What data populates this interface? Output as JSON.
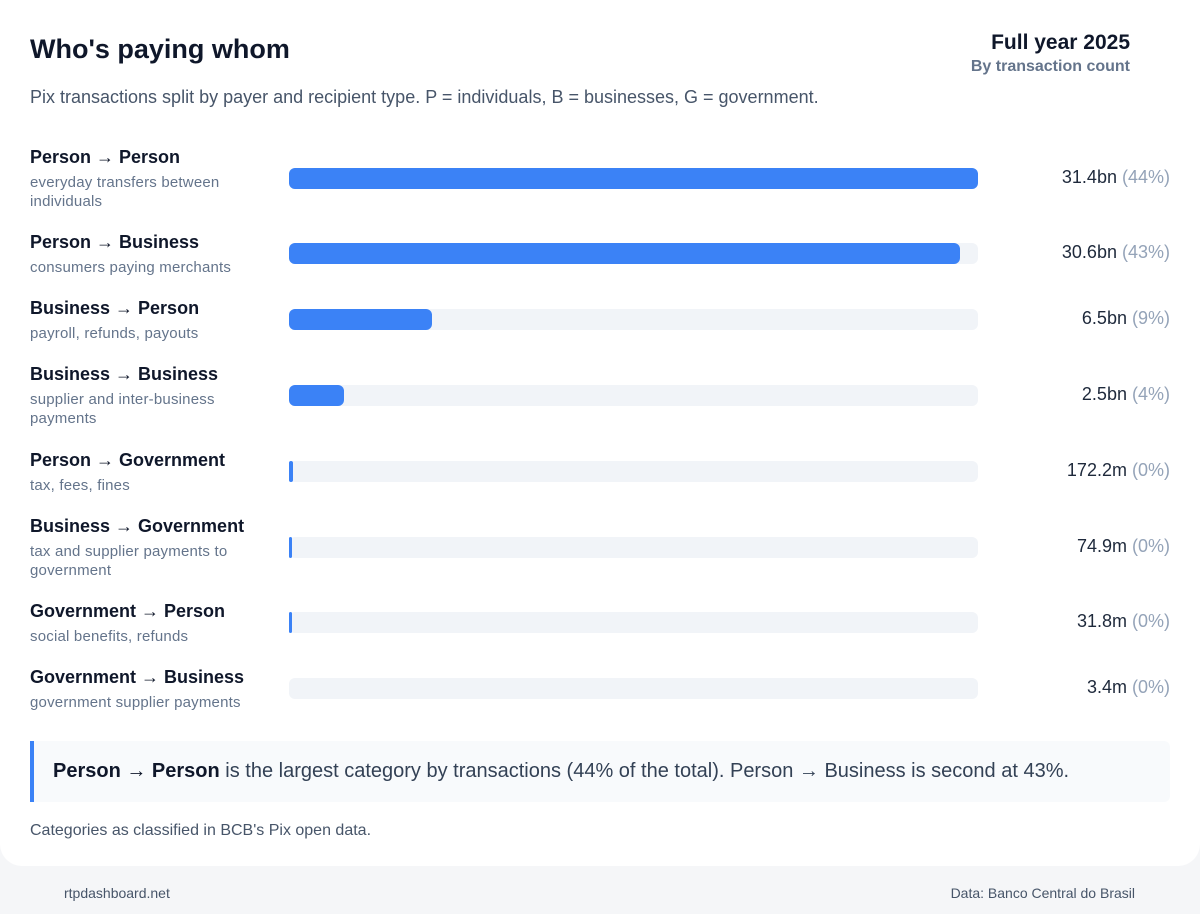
{
  "header": {
    "title": "Who's paying whom",
    "period": "Full year 2025",
    "metric": "By transaction count",
    "subtitle": "Pix transactions split by payer and recipient type. P = individuals, B = businesses, G = government."
  },
  "chart_data": {
    "type": "bar",
    "orientation": "horizontal",
    "unit": "transactions",
    "categories": [
      "Person → Person",
      "Person → Business",
      "Business → Person",
      "Business → Business",
      "Person → Government",
      "Business → Government",
      "Government → Person",
      "Government → Business"
    ],
    "descriptions": [
      "everyday transfers between individuals",
      "consumers paying merchants",
      "payroll, refunds, payouts",
      "supplier and inter-business payments",
      "tax, fees, fines",
      "tax and supplier payments to government",
      "social benefits, refunds",
      "government supplier payments"
    ],
    "values": [
      31400000000,
      30600000000,
      6500000000,
      2500000000,
      172200000,
      74900000,
      31800000,
      3400000
    ],
    "value_labels": [
      "31.4bn",
      "30.6bn",
      "6.5bn",
      "2.5bn",
      "172.2m",
      "74.9m",
      "31.8m",
      "3.4m"
    ],
    "percent_labels": [
      "(44%)",
      "(43%)",
      "(9%)",
      "(4%)",
      "(0%)",
      "(0%)",
      "(0%)",
      "(0%)"
    ],
    "xlim": [
      0,
      31400000000
    ],
    "colors": {
      "bar": "#3b82f6",
      "track": "#f1f4f8"
    }
  },
  "callout": {
    "strong": "Person → Person",
    "text": " is the largest category by transactions (44% of the total). Person → Business is second at 43%."
  },
  "note": "Categories as classified in BCB's Pix open data.",
  "footer": {
    "site": "rtpdashboard.net",
    "source": "Data: Banco Central do Brasil"
  }
}
